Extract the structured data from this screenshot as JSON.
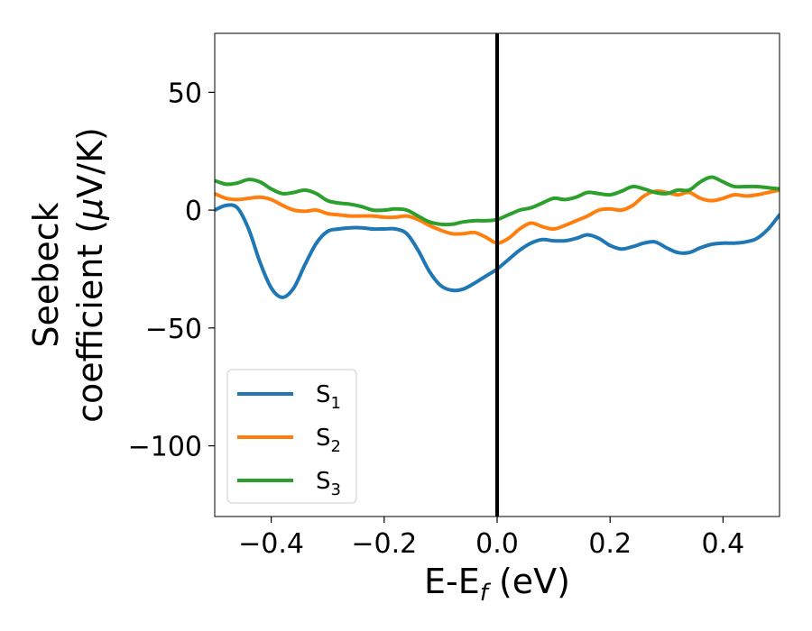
{
  "chart_data": {
    "type": "line",
    "xlabel": {
      "main": "E-E",
      "sub": "f",
      "unit": " (eV)"
    },
    "ylabel": {
      "line1": "Seebeck",
      "line2_prefix": "coefficient  (",
      "mu": "μ",
      "line2_suffix": "V/K)"
    },
    "xlim": [
      -0.5,
      0.5
    ],
    "ylim": [
      -130,
      75
    ],
    "xticks": [
      -0.4,
      -0.2,
      0.0,
      0.2,
      0.4
    ],
    "xtick_labels": [
      "−0.4",
      "−0.2",
      "0.0",
      "0.2",
      "0.4"
    ],
    "yticks": [
      50,
      0,
      -50,
      -100
    ],
    "ytick_labels": [
      "50",
      "0",
      "−50",
      "−100"
    ],
    "grid": false,
    "vline": {
      "x": 0.0,
      "color": "#000000"
    },
    "legend": {
      "position": "lower-left"
    },
    "series": [
      {
        "name": "S",
        "sub": "1",
        "color": "#1f77b4",
        "points": [
          [
            -0.5,
            0
          ],
          [
            -0.48,
            2
          ],
          [
            -0.46,
            1
          ],
          [
            -0.44,
            -8
          ],
          [
            -0.42,
            -22
          ],
          [
            -0.4,
            -33
          ],
          [
            -0.38,
            -37
          ],
          [
            -0.36,
            -33
          ],
          [
            -0.34,
            -23
          ],
          [
            -0.32,
            -14
          ],
          [
            -0.3,
            -9
          ],
          [
            -0.28,
            -8
          ],
          [
            -0.26,
            -7.5
          ],
          [
            -0.24,
            -7.5
          ],
          [
            -0.22,
            -8
          ],
          [
            -0.2,
            -8
          ],
          [
            -0.18,
            -8
          ],
          [
            -0.16,
            -10
          ],
          [
            -0.14,
            -17
          ],
          [
            -0.12,
            -26
          ],
          [
            -0.1,
            -32
          ],
          [
            -0.08,
            -34
          ],
          [
            -0.06,
            -33.5
          ],
          [
            -0.04,
            -31
          ],
          [
            -0.02,
            -28
          ],
          [
            0.0,
            -25
          ],
          [
            0.02,
            -21
          ],
          [
            0.04,
            -17
          ],
          [
            0.06,
            -14
          ],
          [
            0.08,
            -12.5
          ],
          [
            0.1,
            -13
          ],
          [
            0.12,
            -13
          ],
          [
            0.14,
            -12
          ],
          [
            0.16,
            -10.5
          ],
          [
            0.18,
            -12
          ],
          [
            0.2,
            -15
          ],
          [
            0.22,
            -16.5
          ],
          [
            0.24,
            -15.5
          ],
          [
            0.26,
            -14
          ],
          [
            0.28,
            -13.5
          ],
          [
            0.3,
            -16
          ],
          [
            0.32,
            -18
          ],
          [
            0.34,
            -18
          ],
          [
            0.36,
            -16
          ],
          [
            0.38,
            -14.5
          ],
          [
            0.4,
            -14
          ],
          [
            0.42,
            -14
          ],
          [
            0.44,
            -13.5
          ],
          [
            0.46,
            -12
          ],
          [
            0.48,
            -8
          ],
          [
            0.5,
            -2
          ]
        ]
      },
      {
        "name": "S",
        "sub": "2",
        "color": "#ff7f0e",
        "points": [
          [
            -0.5,
            7
          ],
          [
            -0.48,
            5
          ],
          [
            -0.46,
            4.5
          ],
          [
            -0.44,
            5
          ],
          [
            -0.42,
            5.5
          ],
          [
            -0.4,
            4.5
          ],
          [
            -0.38,
            2
          ],
          [
            -0.36,
            0
          ],
          [
            -0.34,
            -0.5
          ],
          [
            -0.32,
            0
          ],
          [
            -0.3,
            -1.5
          ],
          [
            -0.28,
            -2
          ],
          [
            -0.26,
            -2.5
          ],
          [
            -0.24,
            -2.5
          ],
          [
            -0.22,
            -2.5
          ],
          [
            -0.2,
            -3
          ],
          [
            -0.18,
            -3
          ],
          [
            -0.16,
            -2.5
          ],
          [
            -0.14,
            -4
          ],
          [
            -0.12,
            -6.5
          ],
          [
            -0.1,
            -8.5
          ],
          [
            -0.08,
            -10
          ],
          [
            -0.06,
            -10
          ],
          [
            -0.04,
            -9.5
          ],
          [
            -0.02,
            -11.5
          ],
          [
            0.0,
            -14
          ],
          [
            0.02,
            -12
          ],
          [
            0.04,
            -8
          ],
          [
            0.06,
            -5.5
          ],
          [
            0.08,
            -7
          ],
          [
            0.1,
            -8
          ],
          [
            0.12,
            -6.5
          ],
          [
            0.14,
            -4.5
          ],
          [
            0.16,
            -2.5
          ],
          [
            0.18,
            0
          ],
          [
            0.2,
            0.5
          ],
          [
            0.22,
            0
          ],
          [
            0.24,
            2
          ],
          [
            0.26,
            6
          ],
          [
            0.28,
            8
          ],
          [
            0.3,
            7.5
          ],
          [
            0.32,
            6.5
          ],
          [
            0.34,
            7.5
          ],
          [
            0.36,
            5
          ],
          [
            0.38,
            4
          ],
          [
            0.4,
            5
          ],
          [
            0.42,
            6.5
          ],
          [
            0.44,
            6
          ],
          [
            0.46,
            6.5
          ],
          [
            0.48,
            7.5
          ],
          [
            0.5,
            8.5
          ]
        ]
      },
      {
        "name": "S",
        "sub": "3",
        "color": "#2ca02c",
        "points": [
          [
            -0.5,
            12.5
          ],
          [
            -0.48,
            11
          ],
          [
            -0.46,
            11.5
          ],
          [
            -0.44,
            13
          ],
          [
            -0.42,
            12
          ],
          [
            -0.4,
            9
          ],
          [
            -0.38,
            7
          ],
          [
            -0.36,
            7.5
          ],
          [
            -0.34,
            8.5
          ],
          [
            -0.32,
            7
          ],
          [
            -0.3,
            4
          ],
          [
            -0.28,
            3
          ],
          [
            -0.26,
            2.5
          ],
          [
            -0.24,
            1.5
          ],
          [
            -0.22,
            0
          ],
          [
            -0.2,
            0
          ],
          [
            -0.18,
            0.5
          ],
          [
            -0.16,
            0
          ],
          [
            -0.14,
            -2.5
          ],
          [
            -0.12,
            -5
          ],
          [
            -0.1,
            -6
          ],
          [
            -0.08,
            -6
          ],
          [
            -0.06,
            -5
          ],
          [
            -0.04,
            -4.5
          ],
          [
            -0.02,
            -4.5
          ],
          [
            0.0,
            -4
          ],
          [
            0.02,
            -2
          ],
          [
            0.04,
            0
          ],
          [
            0.06,
            1
          ],
          [
            0.08,
            3
          ],
          [
            0.1,
            5
          ],
          [
            0.12,
            4.5
          ],
          [
            0.14,
            5.5
          ],
          [
            0.16,
            7.5
          ],
          [
            0.18,
            7
          ],
          [
            0.2,
            6.5
          ],
          [
            0.22,
            8
          ],
          [
            0.24,
            10
          ],
          [
            0.26,
            9
          ],
          [
            0.28,
            7.5
          ],
          [
            0.3,
            7
          ],
          [
            0.32,
            8.5
          ],
          [
            0.34,
            8.5
          ],
          [
            0.36,
            12
          ],
          [
            0.38,
            14
          ],
          [
            0.4,
            12
          ],
          [
            0.42,
            10
          ],
          [
            0.44,
            10
          ],
          [
            0.46,
            10
          ],
          [
            0.48,
            9.5
          ],
          [
            0.5,
            9
          ]
        ]
      }
    ]
  }
}
